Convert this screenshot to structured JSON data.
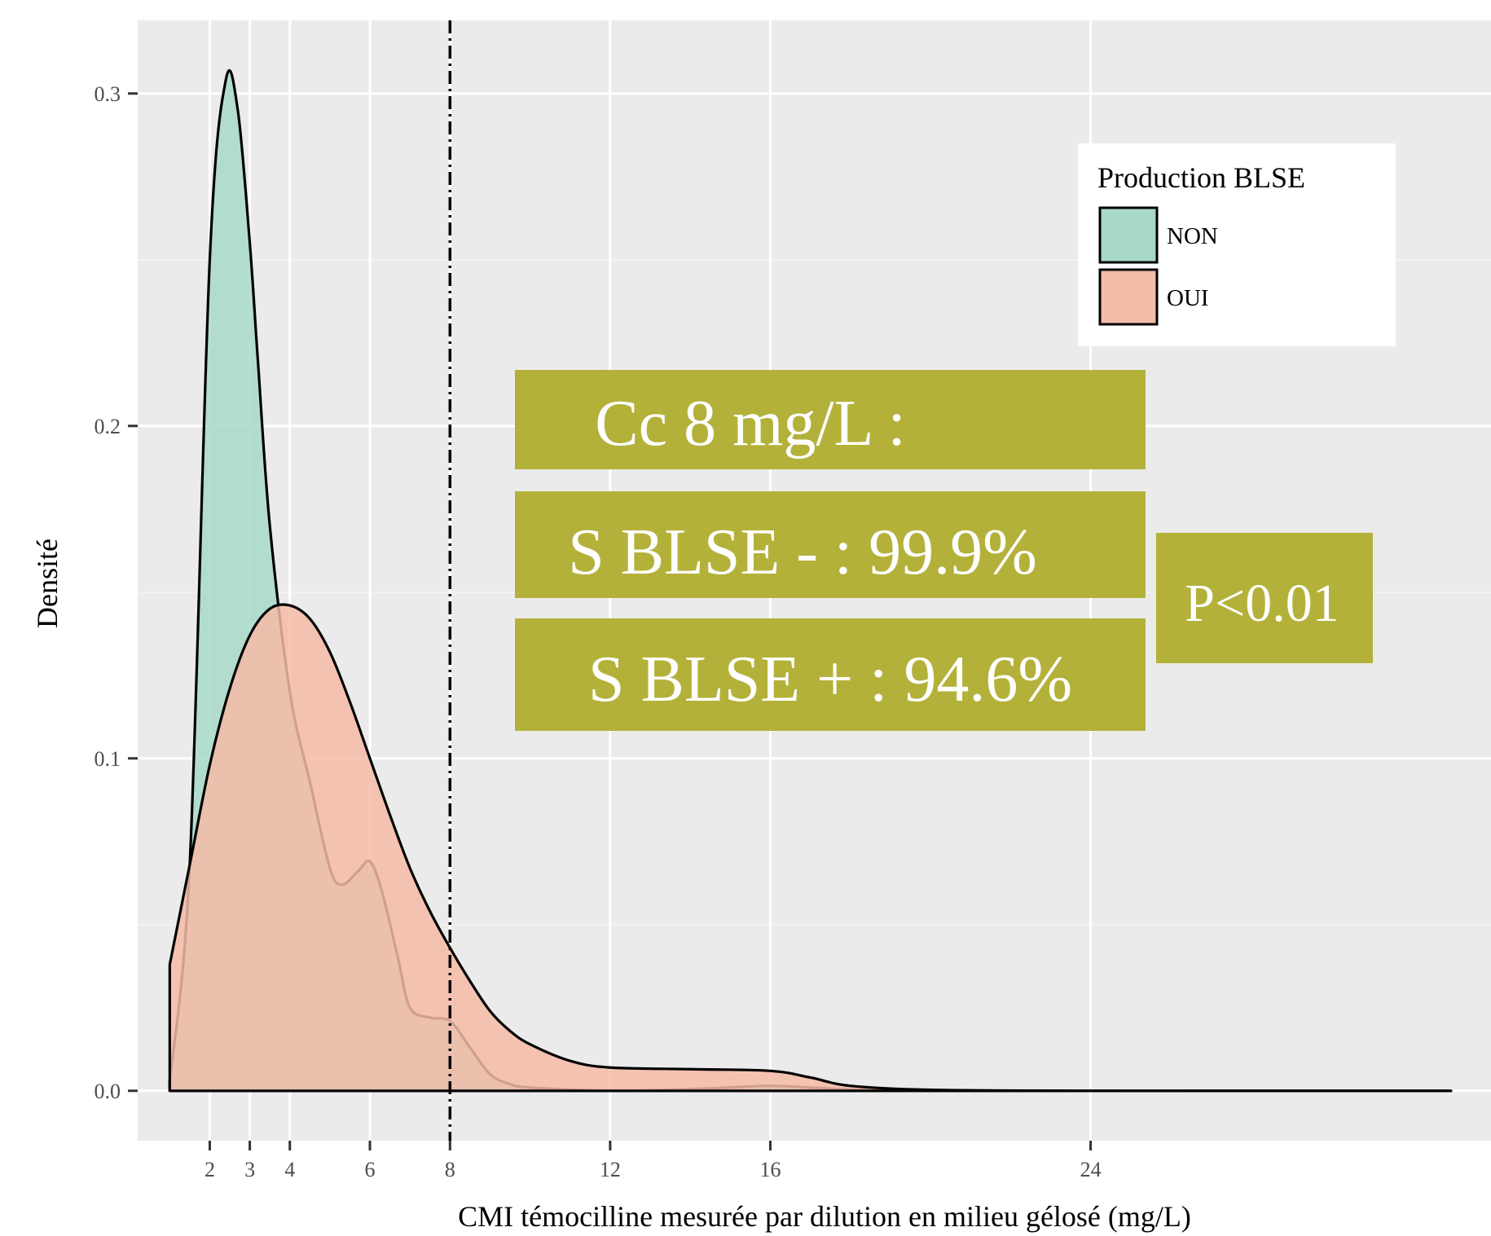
{
  "chart_data": {
    "type": "area",
    "xlabel": "CMI témocilline mesurée par dilution en milieu gélosé (mg/L)",
    "ylabel": "Densité",
    "x_ticks": [
      2,
      3,
      4,
      6,
      8,
      12,
      16,
      24
    ],
    "x_tick_labels": [
      "2",
      "3",
      "4",
      "6",
      "8",
      "12",
      "16",
      "24"
    ],
    "y_ticks": [
      0.0,
      0.1,
      0.2,
      0.3
    ],
    "y_tick_labels": [
      "0.0",
      "0.1",
      "0.2",
      "0.3"
    ],
    "xlim": [
      0.2,
      34
    ],
    "ylim": [
      -0.015,
      0.322
    ],
    "grid": true,
    "legend": {
      "title": "Production BLSE",
      "position": "top-right",
      "entries": [
        {
          "label": "NON",
          "color": "#a8d9c8"
        },
        {
          "label": "OUI",
          "color": "#f4bba7"
        }
      ]
    },
    "series": [
      {
        "name": "NON",
        "color": "#a8d9c8",
        "x": [
          1,
          1.5,
          2,
          2.4,
          2.7,
          3,
          3.2,
          3.5,
          4,
          4.5,
          5,
          5.3,
          5.7,
          6,
          6.3,
          6.7,
          7,
          7.5,
          8,
          8.5,
          9,
          9.5,
          10,
          12,
          14,
          15,
          16,
          17,
          18,
          20,
          24,
          28,
          33
        ],
        "values": [
          0.003,
          0.068,
          0.25,
          0.304,
          0.295,
          0.255,
          0.22,
          0.17,
          0.12,
          0.093,
          0.067,
          0.062,
          0.066,
          0.069,
          0.06,
          0.04,
          0.025,
          0.022,
          0.021,
          0.013,
          0.005,
          0.002,
          0.001,
          0.0,
          0.0005,
          0.001,
          0.0015,
          0.001,
          0.0004,
          0.0,
          0.0,
          0.0,
          0.0
        ]
      },
      {
        "name": "OUI",
        "color": "#f4bba7",
        "x": [
          1,
          1.5,
          2,
          2.5,
          3,
          3.5,
          4,
          4.5,
          5,
          5.5,
          6,
          6.5,
          7,
          7.5,
          8,
          8.5,
          9,
          9.5,
          10,
          11,
          12,
          14,
          16,
          17,
          18,
          20,
          24,
          28,
          33
        ],
        "values": [
          0.038,
          0.068,
          0.098,
          0.121,
          0.137,
          0.145,
          0.146,
          0.142,
          0.132,
          0.117,
          0.1,
          0.083,
          0.067,
          0.054,
          0.043,
          0.033,
          0.024,
          0.018,
          0.014,
          0.009,
          0.007,
          0.0065,
          0.006,
          0.004,
          0.0015,
          0.0003,
          0.0,
          0.0,
          0.0
        ]
      }
    ],
    "reference_line": {
      "x": 8,
      "style": "dotdash",
      "color": "#000000"
    },
    "annotations": {
      "color": "#b4b13a",
      "lines": [
        "Cc 8 mg/L :",
        "S BLSE - : 99.9%",
        "S BLSE + : 94.6%"
      ],
      "pvalue": "P<0.01"
    }
  }
}
